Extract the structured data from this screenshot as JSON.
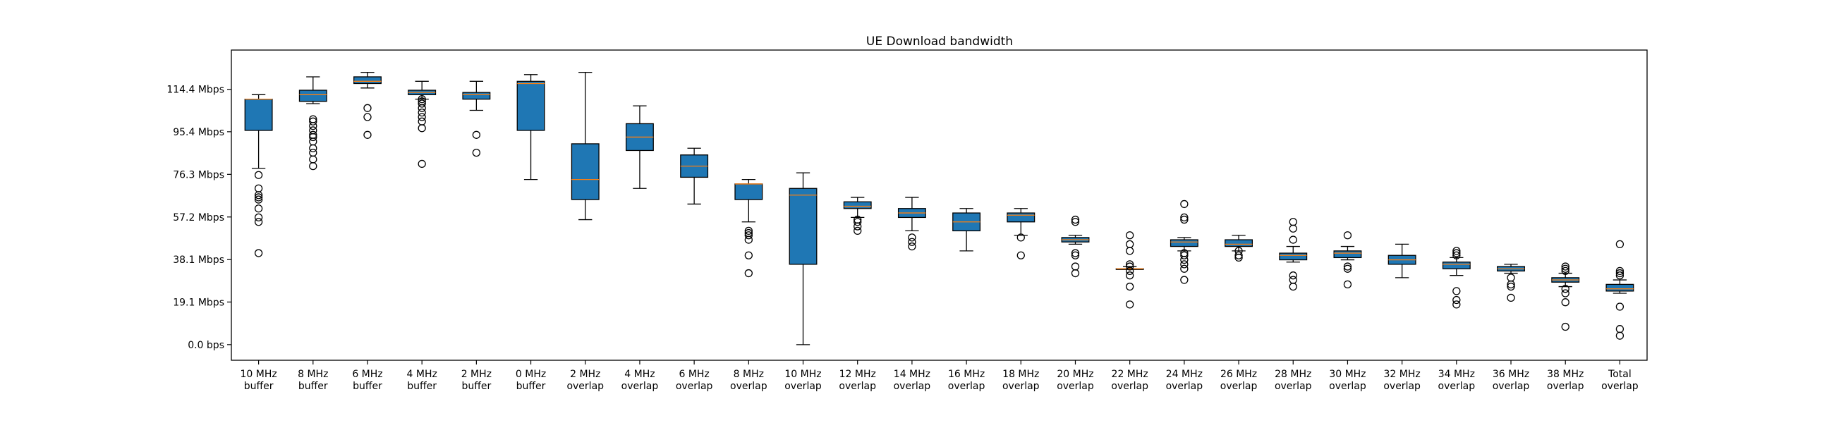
{
  "chart_data": {
    "type": "box",
    "title": "UE Download bandwidth",
    "xlabel": "",
    "ylabel": "",
    "ylim": [
      -7,
      132
    ],
    "yticks": [
      {
        "value": 0.0,
        "label": "0.0 bps"
      },
      {
        "value": 19.1,
        "label": "19.1 Mbps"
      },
      {
        "value": 38.1,
        "label": "38.1 Mbps"
      },
      {
        "value": 57.2,
        "label": "57.2 Mbps"
      },
      {
        "value": 76.3,
        "label": "76.3 Mbps"
      },
      {
        "value": 95.4,
        "label": "95.4 Mbps"
      },
      {
        "value": 114.4,
        "label": "114.4 Mbps"
      }
    ],
    "categories": [
      {
        "label": [
          "10 MHz",
          "buffer"
        ],
        "whislo": 79,
        "q1": 96,
        "med": 110,
        "q3": 110,
        "whishi": 112,
        "fliers": [
          76,
          70,
          67,
          66,
          65,
          61,
          57,
          55,
          41
        ]
      },
      {
        "label": [
          "8 MHz",
          "buffer"
        ],
        "whislo": 108,
        "q1": 109,
        "med": 112,
        "q3": 114,
        "whishi": 120,
        "fliers": [
          101,
          100,
          98,
          96,
          94,
          93,
          91,
          88,
          86,
          83,
          80
        ]
      },
      {
        "label": [
          "6 MHz",
          "buffer"
        ],
        "whislo": 115,
        "q1": 117,
        "med": 118,
        "q3": 120,
        "whishi": 122,
        "fliers": [
          106,
          102,
          94
        ]
      },
      {
        "label": [
          "4 MHz",
          "buffer"
        ],
        "whislo": 110,
        "q1": 112,
        "med": 113,
        "q3": 114,
        "whishi": 118,
        "fliers": [
          110,
          109,
          108,
          106,
          104,
          102,
          100,
          97,
          81
        ]
      },
      {
        "label": [
          "2 MHz",
          "buffer"
        ],
        "whislo": 105,
        "q1": 110,
        "med": 112,
        "q3": 113,
        "whishi": 118,
        "fliers": [
          94,
          86
        ]
      },
      {
        "label": [
          "0 MHz",
          "buffer"
        ],
        "whislo": 74,
        "q1": 96,
        "med": 117,
        "q3": 118,
        "whishi": 121,
        "fliers": []
      },
      {
        "label": [
          "2 MHz",
          "overlap"
        ],
        "whislo": 56,
        "q1": 65,
        "med": 74,
        "q3": 90,
        "whishi": 122,
        "fliers": []
      },
      {
        "label": [
          "4 MHz",
          "overlap"
        ],
        "whislo": 70,
        "q1": 87,
        "med": 93,
        "q3": 99,
        "whishi": 107,
        "fliers": []
      },
      {
        "label": [
          "6 MHz",
          "overlap"
        ],
        "whislo": 63,
        "q1": 75,
        "med": 80,
        "q3": 85,
        "whishi": 88,
        "fliers": []
      },
      {
        "label": [
          "8 MHz",
          "overlap"
        ],
        "whislo": 55,
        "q1": 65,
        "med": 72,
        "q3": 72,
        "whishi": 74,
        "fliers": [
          51,
          50,
          49,
          47,
          40,
          32
        ]
      },
      {
        "label": [
          "10 MHz",
          "overlap"
        ],
        "whislo": 0,
        "q1": 36,
        "med": 67,
        "q3": 70,
        "whishi": 77,
        "fliers": []
      },
      {
        "label": [
          "12 MHz",
          "overlap"
        ],
        "whislo": 57,
        "q1": 61,
        "med": 62,
        "q3": 64,
        "whishi": 66,
        "fliers": [
          56,
          55,
          53,
          51
        ]
      },
      {
        "label": [
          "14 MHz",
          "overlap"
        ],
        "whislo": 51,
        "q1": 57,
        "med": 59,
        "q3": 61,
        "whishi": 66,
        "fliers": [
          48,
          46,
          44
        ]
      },
      {
        "label": [
          "16 MHz",
          "overlap"
        ],
        "whislo": 42,
        "q1": 51,
        "med": 55,
        "q3": 59,
        "whishi": 61,
        "fliers": []
      },
      {
        "label": [
          "18 MHz",
          "overlap"
        ],
        "whislo": 49,
        "q1": 55,
        "med": 58,
        "q3": 59,
        "whishi": 61,
        "fliers": [
          48,
          40
        ]
      },
      {
        "label": [
          "20 MHz",
          "overlap"
        ],
        "whislo": 45,
        "q1": 46,
        "med": 47,
        "q3": 48,
        "whishi": 49,
        "fliers": [
          56,
          55,
          41,
          40,
          35,
          32
        ]
      },
      {
        "label": [
          "22 MHz",
          "overlap"
        ],
        "whislo": 34,
        "q1": 34,
        "med": 34,
        "q3": 34,
        "whishi": 35,
        "fliers": [
          49,
          45,
          42,
          36,
          35,
          33,
          31,
          26,
          18
        ]
      },
      {
        "label": [
          "24 MHz",
          "overlap"
        ],
        "whislo": 42,
        "q1": 44,
        "med": 46,
        "q3": 47,
        "whishi": 48,
        "fliers": [
          63,
          57,
          56,
          41,
          40,
          38,
          36,
          34,
          29
        ]
      },
      {
        "label": [
          "26 MHz",
          "overlap"
        ],
        "whislo": 42,
        "q1": 44,
        "med": 45,
        "q3": 47,
        "whishi": 49,
        "fliers": [
          42,
          40,
          39
        ]
      },
      {
        "label": [
          "28 MHz",
          "overlap"
        ],
        "whislo": 37,
        "q1": 38,
        "med": 40,
        "q3": 41,
        "whishi": 44,
        "fliers": [
          55,
          52,
          47,
          31,
          29,
          26
        ]
      },
      {
        "label": [
          "30 MHz",
          "overlap"
        ],
        "whislo": 38,
        "q1": 39,
        "med": 41,
        "q3": 42,
        "whishi": 44,
        "fliers": [
          49,
          35,
          34,
          27
        ]
      },
      {
        "label": [
          "32 MHz",
          "overlap"
        ],
        "whislo": 30,
        "q1": 36,
        "med": 38,
        "q3": 40,
        "whishi": 45,
        "fliers": []
      },
      {
        "label": [
          "34 MHz",
          "overlap"
        ],
        "whislo": 31,
        "q1": 34,
        "med": 36,
        "q3": 37,
        "whishi": 39,
        "fliers": [
          42,
          41,
          40,
          24,
          20,
          18
        ]
      },
      {
        "label": [
          "36 MHz",
          "overlap"
        ],
        "whislo": 32,
        "q1": 33,
        "med": 34,
        "q3": 35,
        "whishi": 36,
        "fliers": [
          30,
          27,
          26,
          21
        ]
      },
      {
        "label": [
          "38 MHz",
          "overlap"
        ],
        "whislo": 26,
        "q1": 28,
        "med": 29,
        "q3": 30,
        "whishi": 32,
        "fliers": [
          35,
          34,
          33,
          25,
          23,
          19,
          8
        ]
      },
      {
        "label": [
          "Total",
          "overlap"
        ],
        "whislo": 23,
        "q1": 24,
        "med": 25,
        "q3": 27,
        "whishi": 29,
        "fliers": [
          45,
          33,
          32,
          31,
          17,
          7,
          4
        ]
      }
    ]
  }
}
